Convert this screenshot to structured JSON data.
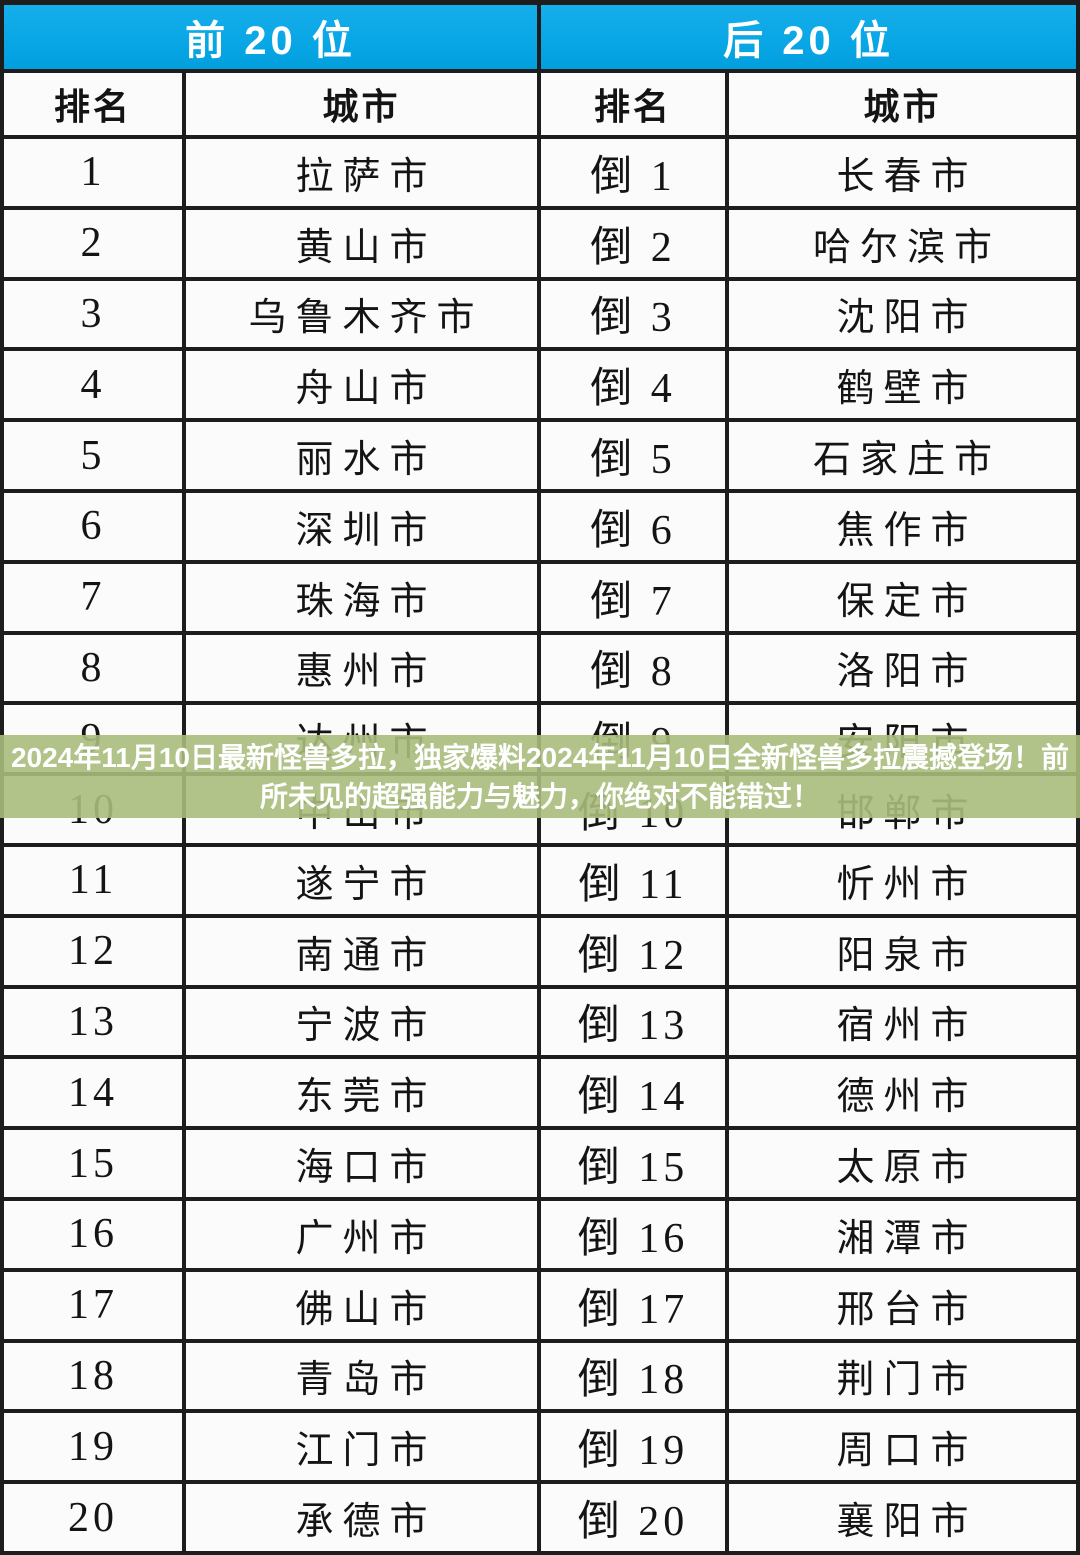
{
  "chart_data": {
    "type": "table",
    "tables": [
      {
        "title": "前 20 位",
        "columns": [
          "排名",
          "城市"
        ],
        "rows": [
          [
            "1",
            "拉萨市"
          ],
          [
            "2",
            "黄山市"
          ],
          [
            "3",
            "乌鲁木齐市"
          ],
          [
            "4",
            "舟山市"
          ],
          [
            "5",
            "丽水市"
          ],
          [
            "6",
            "深圳市"
          ],
          [
            "7",
            "珠海市"
          ],
          [
            "8",
            "惠州市"
          ],
          [
            "9",
            "达州市"
          ],
          [
            "10",
            "中山市"
          ],
          [
            "11",
            "遂宁市"
          ],
          [
            "12",
            "南通市"
          ],
          [
            "13",
            "宁波市"
          ],
          [
            "14",
            "东莞市"
          ],
          [
            "15",
            "海口市"
          ],
          [
            "16",
            "广州市"
          ],
          [
            "17",
            "佛山市"
          ],
          [
            "18",
            "青岛市"
          ],
          [
            "19",
            "江门市"
          ],
          [
            "20",
            "承德市"
          ]
        ]
      },
      {
        "title": "后 20 位",
        "columns": [
          "排名",
          "城市"
        ],
        "rows": [
          [
            "倒 1",
            "长春市"
          ],
          [
            "倒 2",
            "哈尔滨市"
          ],
          [
            "倒 3",
            "沈阳市"
          ],
          [
            "倒 4",
            "鹤壁市"
          ],
          [
            "倒 5",
            "石家庄市"
          ],
          [
            "倒 6",
            "焦作市"
          ],
          [
            "倒 7",
            "保定市"
          ],
          [
            "倒 8",
            "洛阳市"
          ],
          [
            "倒 9",
            "安阳市"
          ],
          [
            "倒 10",
            "邯郸市"
          ],
          [
            "倒 11",
            "忻州市"
          ],
          [
            "倒 12",
            "阳泉市"
          ],
          [
            "倒 13",
            "宿州市"
          ],
          [
            "倒 14",
            "德州市"
          ],
          [
            "倒 15",
            "太原市"
          ],
          [
            "倒 16",
            "湘潭市"
          ],
          [
            "倒 17",
            "邢台市"
          ],
          [
            "倒 18",
            "荆门市"
          ],
          [
            "倒 19",
            "周口市"
          ],
          [
            "倒 20",
            "襄阳市"
          ]
        ]
      }
    ]
  },
  "overlay": {
    "line1": "2024年11月10日最新怪兽多拉，独家爆料2024年11月10日全新怪兽多拉震撼登场！前",
    "line2": "所未见的超强能力与魅力，你绝对不能错过！"
  },
  "colors": {
    "header_blue": "#0aa7e6",
    "overlay_green": "rgba(169,188,124,0.9)",
    "border": "#1d1d1d",
    "cell_bg": "#fbfbfb",
    "header_text": "#ffffff",
    "body_text": "#141414",
    "overlay_text": "#ffffff"
  }
}
